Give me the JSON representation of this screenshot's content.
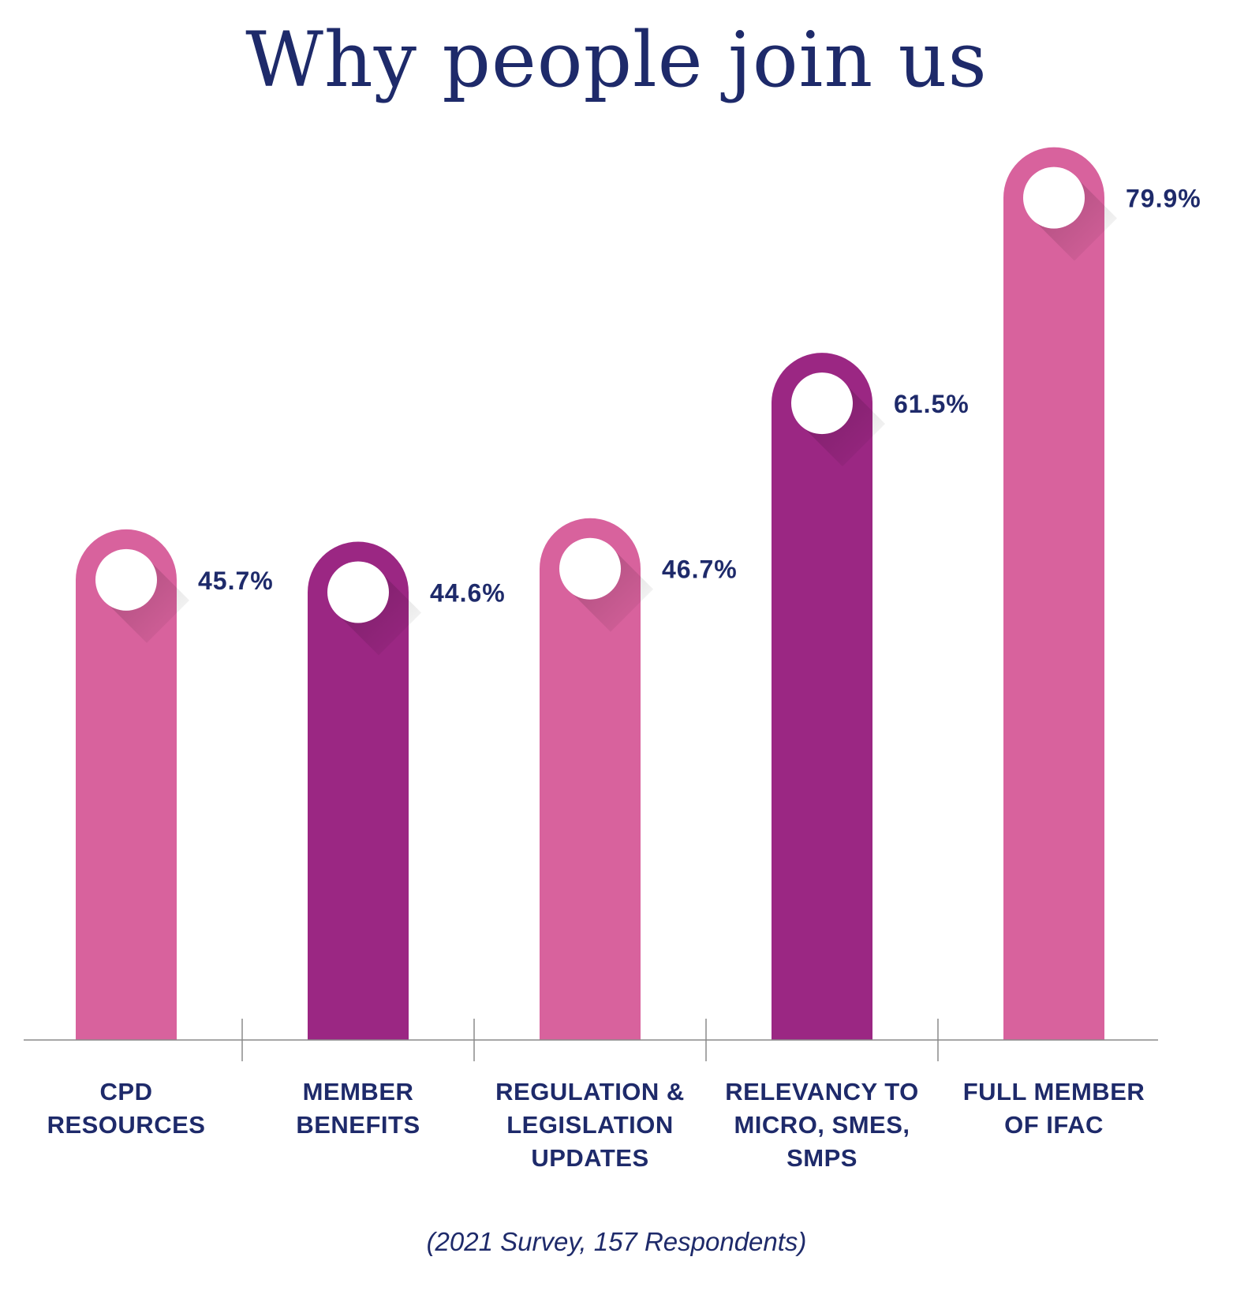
{
  "chart_data": {
    "type": "bar",
    "title": "Why people join us",
    "categories": [
      "CPD\nRESOURCES",
      "MEMBER\nBENEFITS",
      "REGULATION &\nLEGISLATION\nUPDATES",
      "RELEVANCY TO\nMICRO, SMES,\nSMPS",
      "FULL MEMBER\nOF IFAC"
    ],
    "values": [
      45.7,
      44.6,
      46.7,
      61.5,
      79.9
    ],
    "value_labels": [
      "45.7%",
      "44.6%",
      "46.7%",
      "61.5%",
      "79.9%"
    ],
    "colors": [
      "#d8629d",
      "#9b2783",
      "#d8629d",
      "#9b2783",
      "#d8629d"
    ],
    "ylim": [
      0,
      100
    ],
    "grid": false,
    "legend": "none",
    "footnote": "(2021 Survey, 157 Respondents)"
  }
}
